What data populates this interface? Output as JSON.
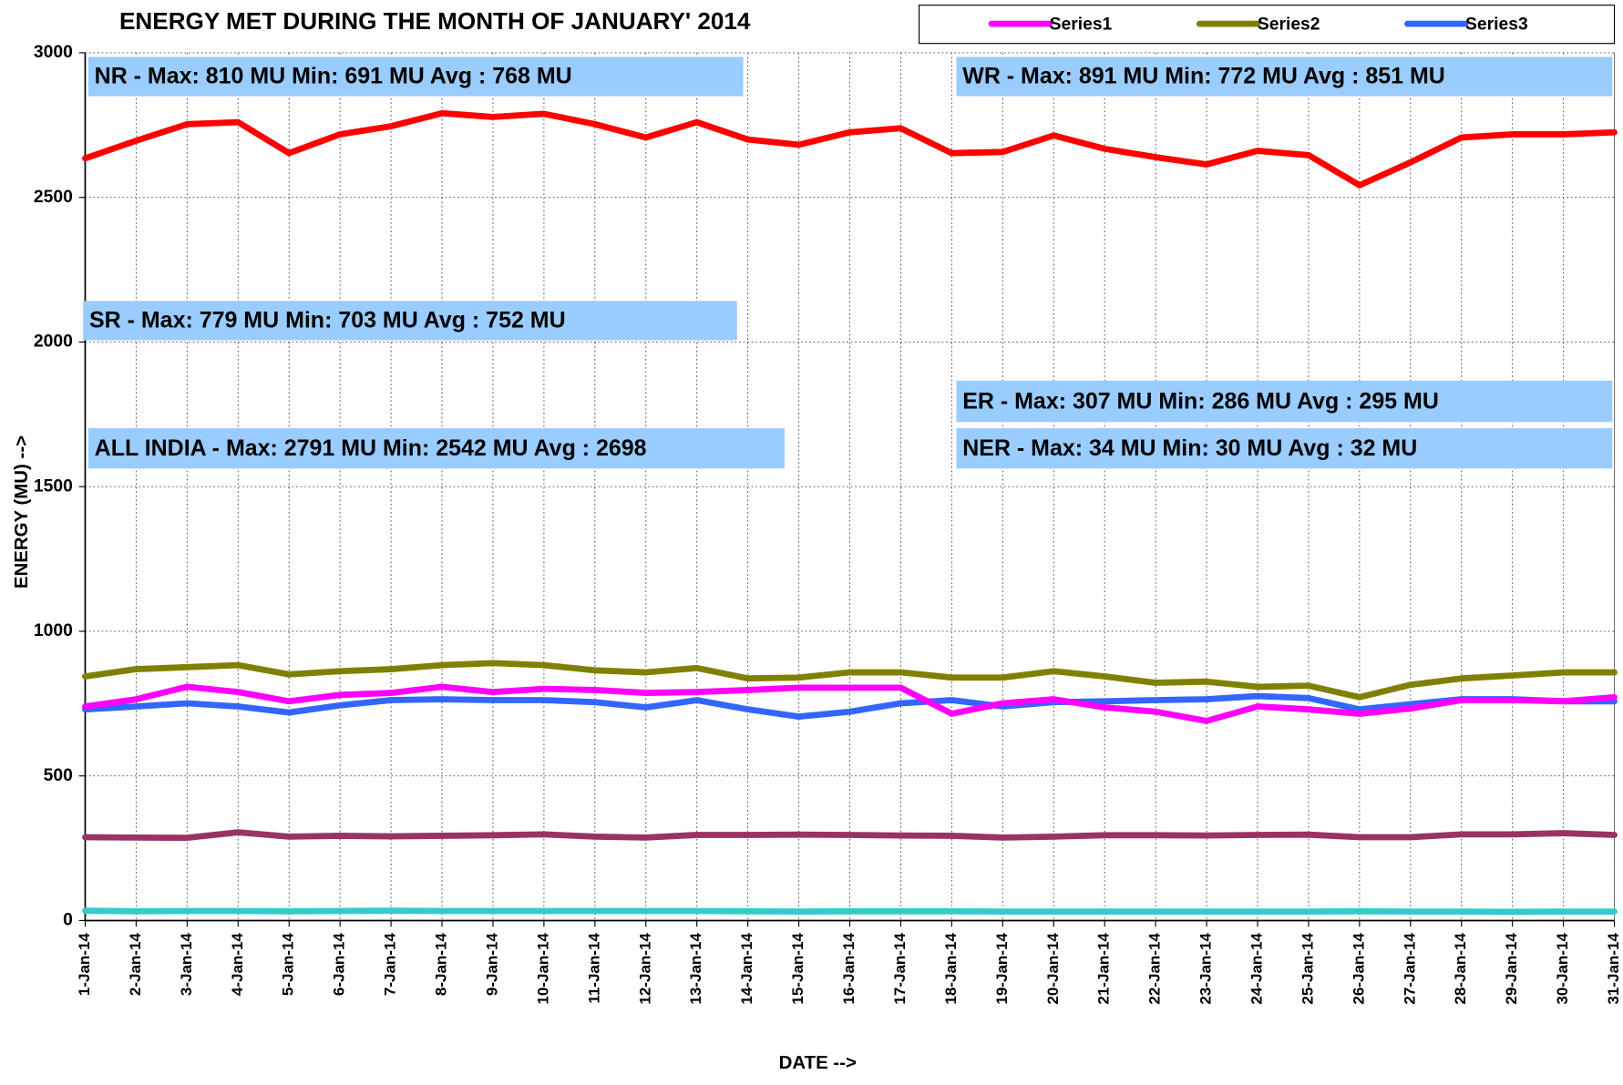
{
  "chart_data": {
    "type": "line",
    "title": "ENERGY MET DURING THE MONTH OF JANUARY' 2014",
    "x_label": "DATE -->",
    "y_label": "ENERGY (MU) -->",
    "categories": [
      "1-Jan-14",
      "2-Jan-14",
      "3-Jan-14",
      "4-Jan-14",
      "5-Jan-14",
      "6-Jan-14",
      "7-Jan-14",
      "8-Jan-14",
      "9-Jan-14",
      "10-Jan-14",
      "11-Jan-14",
      "12-Jan-14",
      "13-Jan-14",
      "14-Jan-14",
      "15-Jan-14",
      "16-Jan-14",
      "17-Jan-14",
      "18-Jan-14",
      "19-Jan-14",
      "20-Jan-14",
      "21-Jan-14",
      "22-Jan-14",
      "23-Jan-14",
      "24-Jan-14",
      "25-Jan-14",
      "26-Jan-14",
      "27-Jan-14",
      "28-Jan-14",
      "29-Jan-14",
      "30-Jan-14",
      "31-Jan-14"
    ],
    "ylim": [
      0,
      3000
    ],
    "yticks": [
      0,
      500,
      1000,
      1500,
      2000,
      2500,
      3000
    ],
    "grid": true,
    "legend": "top-right",
    "series": [
      {
        "name": "Series1",
        "color": "#ff00ff",
        "values": [
          740,
          765,
          808,
          790,
          758,
          780,
          787,
          808,
          790,
          801,
          797,
          787,
          790,
          797,
          805,
          805,
          805,
          715,
          751,
          765,
          737,
          722,
          690,
          740,
          730,
          715,
          733,
          762,
          762,
          758,
          772
        ]
      },
      {
        "name": "Series2",
        "color": "#808000",
        "values": [
          844,
          869,
          876,
          883,
          851,
          862,
          869,
          883,
          890,
          883,
          865,
          858,
          873,
          837,
          840,
          858,
          858,
          840,
          840,
          862,
          844,
          822,
          826,
          808,
          812,
          772,
          815,
          837,
          847,
          858,
          858
        ]
      },
      {
        "name": "Series3",
        "color": "#3366ff",
        "values": [
          730,
          740,
          751,
          740,
          719,
          744,
          762,
          765,
          762,
          762,
          755,
          737,
          762,
          730,
          705,
          722,
          751,
          762,
          740,
          755,
          758,
          762,
          765,
          776,
          769,
          730,
          748,
          765,
          765,
          758,
          758
        ]
      },
      {
        "color": "#ff0000",
        "values": [
          2635,
          2696,
          2753,
          2760,
          2653,
          2718,
          2746,
          2791,
          2778,
          2789,
          2753,
          2707,
          2760,
          2700,
          2682,
          2725,
          2739,
          2653,
          2657,
          2714,
          2668,
          2639,
          2614,
          2661,
          2646,
          2542,
          2621,
          2707,
          2718,
          2718,
          2725
        ]
      },
      {
        "color": "#993366",
        "values": [
          288,
          287,
          286,
          305,
          290,
          293,
          291,
          293,
          295,
          298,
          290,
          287,
          296,
          296,
          297,
          296,
          294,
          293,
          287,
          290,
          295,
          295,
          294,
          296,
          297,
          288,
          288,
          298,
          298,
          302,
          296
        ]
      },
      {
        "color": "#33cccc",
        "values": [
          34,
          32,
          33,
          33,
          32,
          33,
          34,
          33,
          33,
          33,
          33,
          33,
          33,
          32,
          31,
          32,
          32,
          32,
          31,
          31,
          31,
          31,
          31,
          31,
          31,
          32,
          31,
          31,
          30,
          31,
          31
        ]
      }
    ],
    "annotations": [
      "NR - Max: 810 MU Min: 691 MU Avg : 768 MU",
      "WR - Max: 891 MU Min: 772 MU Avg : 851 MU",
      "SR - Max: 779 MU Min: 703 MU Avg : 752 MU",
      "ER - Max: 307 MU Min: 286 MU Avg : 295 MU",
      "ALL INDIA - Max: 2791 MU Min: 2542 MU Avg : 2698",
      "NER - Max: 34 MU Min: 30 MU Avg : 32 MU"
    ]
  }
}
